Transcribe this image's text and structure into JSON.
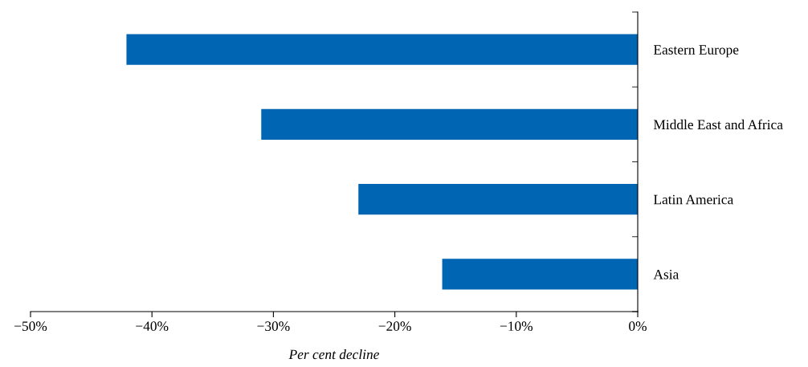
{
  "chart_data": {
    "type": "bar",
    "orientation": "horizontal",
    "xlabel": "Per cent decline",
    "categories": [
      "Eastern Europe",
      "Middle East and Africa",
      "Latin America",
      "Asia"
    ],
    "values": [
      -42.1,
      -31.0,
      -23.0,
      -16.1
    ],
    "color": "#0066b3",
    "xlim": [
      -50,
      0
    ],
    "xticks": [
      {
        "value": -50,
        "label": "−50%"
      },
      {
        "value": -40,
        "label": "−40%"
      },
      {
        "value": -30,
        "label": "−30%"
      },
      {
        "value": -20,
        "label": "−20%"
      },
      {
        "value": -10,
        "label": "−10%"
      },
      {
        "value": 0,
        "label": "0%"
      }
    ],
    "grid": false,
    "legend": false
  }
}
